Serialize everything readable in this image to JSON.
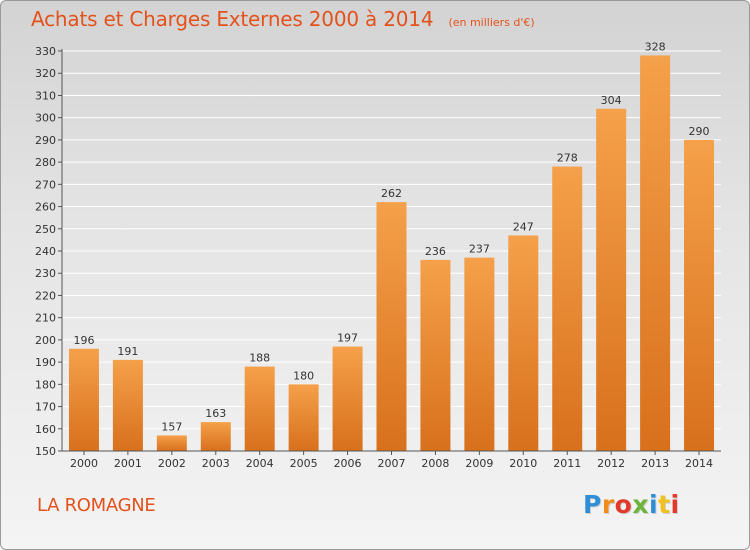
{
  "header": {
    "title": "Achats et Charges Externes 2000 à 2014",
    "unit": "(en milliers d'€)"
  },
  "footer": {
    "commune": "LA ROMAGNE",
    "brand": "Proxiti"
  },
  "colors": {
    "title": "#e4521c",
    "bar_light": "#f5a04a",
    "bar_dark": "#d8701c",
    "grid": "#ffffff",
    "background_top": "#d3d3d3",
    "background_bottom": "#f4f4f4",
    "brand_letters": [
      "#2e8fd8",
      "#f08c1c",
      "#e23a2a",
      "#6cb43c",
      "#2e8fd8",
      "#f0c01c",
      "#e23a2a"
    ]
  },
  "chart_data": {
    "type": "bar",
    "title": "Achats et Charges Externes 2000 à 2014",
    "xlabel": "",
    "ylabel": "",
    "categories": [
      "2000",
      "2001",
      "2002",
      "2003",
      "2004",
      "2005",
      "2006",
      "2007",
      "2008",
      "2009",
      "2010",
      "2011",
      "2012",
      "2013",
      "2014"
    ],
    "values": [
      196,
      191,
      157,
      163,
      188,
      180,
      197,
      262,
      236,
      237,
      247,
      278,
      304,
      328,
      290
    ],
    "ylim": [
      150,
      330
    ],
    "yticks": [
      150,
      160,
      170,
      180,
      190,
      200,
      210,
      220,
      230,
      240,
      250,
      260,
      270,
      280,
      290,
      300,
      310,
      320,
      330
    ],
    "grid": true,
    "data_labels": true
  }
}
